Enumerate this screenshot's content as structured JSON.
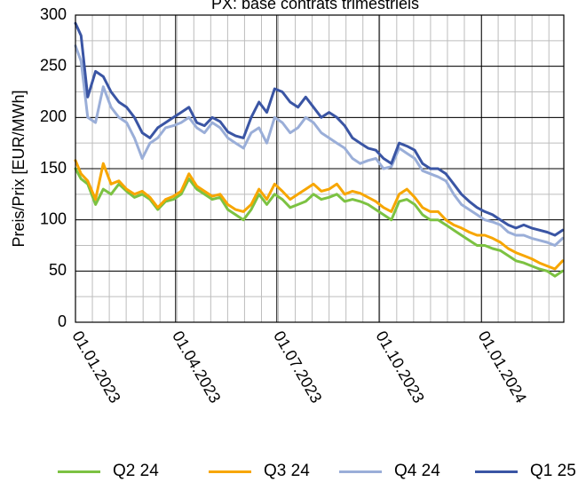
{
  "chart_data": {
    "type": "line",
    "title": "PX: base contrats trimestriels",
    "xlabel": "",
    "ylabel": "Preis/Prix [EUR/MWh]",
    "ylim": [
      0,
      300
    ],
    "yticks": [
      0,
      50,
      100,
      150,
      200,
      250,
      300
    ],
    "xrange": [
      "2023-01-01",
      "2024-03-15"
    ],
    "xticks": [
      {
        "date": "2023-01-01",
        "label": "01.01.2023"
      },
      {
        "date": "2023-04-01",
        "label": "01.04.2023"
      },
      {
        "date": "2023-07-01",
        "label": "01.07.2023"
      },
      {
        "date": "2023-10-01",
        "label": "01.10.2023"
      },
      {
        "date": "2024-01-01",
        "label": "01.01.2024"
      }
    ],
    "grid": true,
    "legend_position": "bottom",
    "series": [
      {
        "name": "Q2 24",
        "color": "#7cc242",
        "x": [
          "2023-01-01",
          "2023-01-06",
          "2023-01-12",
          "2023-01-19",
          "2023-01-26",
          "2023-02-02",
          "2023-02-09",
          "2023-02-16",
          "2023-02-23",
          "2023-03-02",
          "2023-03-09",
          "2023-03-16",
          "2023-03-23",
          "2023-03-30",
          "2023-04-06",
          "2023-04-13",
          "2023-04-20",
          "2023-04-27",
          "2023-05-04",
          "2023-05-11",
          "2023-05-18",
          "2023-05-25",
          "2023-06-01",
          "2023-06-08",
          "2023-06-15",
          "2023-06-22",
          "2023-06-29",
          "2023-07-06",
          "2023-07-13",
          "2023-07-20",
          "2023-07-27",
          "2023-08-03",
          "2023-08-10",
          "2023-08-17",
          "2023-08-24",
          "2023-08-31",
          "2023-09-07",
          "2023-09-14",
          "2023-09-21",
          "2023-09-28",
          "2023-10-05",
          "2023-10-12",
          "2023-10-19",
          "2023-10-26",
          "2023-11-02",
          "2023-11-09",
          "2023-11-16",
          "2023-11-23",
          "2023-11-30",
          "2023-12-07",
          "2023-12-14",
          "2023-12-21",
          "2023-12-28",
          "2024-01-04",
          "2024-01-11",
          "2024-01-18",
          "2024-01-25",
          "2024-02-01",
          "2024-02-08",
          "2024-02-15",
          "2024-02-22",
          "2024-02-29",
          "2024-03-07",
          "2024-03-14"
        ],
        "values": [
          150,
          140,
          135,
          115,
          130,
          125,
          135,
          128,
          122,
          125,
          120,
          110,
          118,
          120,
          125,
          140,
          130,
          125,
          120,
          122,
          110,
          105,
          100,
          110,
          125,
          115,
          125,
          120,
          112,
          115,
          118,
          125,
          120,
          122,
          125,
          118,
          120,
          118,
          115,
          110,
          105,
          100,
          118,
          120,
          115,
          105,
          100,
          100,
          95,
          90,
          85,
          80,
          75,
          75,
          72,
          70,
          65,
          60,
          58,
          55,
          52,
          50,
          45,
          50
        ]
      },
      {
        "name": "Q3 24",
        "color": "#f7a600",
        "x": [
          "2023-01-01",
          "2023-01-06",
          "2023-01-12",
          "2023-01-19",
          "2023-01-26",
          "2023-02-02",
          "2023-02-09",
          "2023-02-16",
          "2023-02-23",
          "2023-03-02",
          "2023-03-09",
          "2023-03-16",
          "2023-03-23",
          "2023-03-30",
          "2023-04-06",
          "2023-04-13",
          "2023-04-20",
          "2023-04-27",
          "2023-05-04",
          "2023-05-11",
          "2023-05-18",
          "2023-05-25",
          "2023-06-01",
          "2023-06-08",
          "2023-06-15",
          "2023-06-22",
          "2023-06-29",
          "2023-07-06",
          "2023-07-13",
          "2023-07-20",
          "2023-07-27",
          "2023-08-03",
          "2023-08-10",
          "2023-08-17",
          "2023-08-24",
          "2023-08-31",
          "2023-09-07",
          "2023-09-14",
          "2023-09-21",
          "2023-09-28",
          "2023-10-05",
          "2023-10-12",
          "2023-10-19",
          "2023-10-26",
          "2023-11-02",
          "2023-11-09",
          "2023-11-16",
          "2023-11-23",
          "2023-11-30",
          "2023-12-07",
          "2023-12-14",
          "2023-12-21",
          "2023-12-28",
          "2024-01-04",
          "2024-01-11",
          "2024-01-18",
          "2024-01-25",
          "2024-02-01",
          "2024-02-08",
          "2024-02-15",
          "2024-02-22",
          "2024-02-29",
          "2024-03-07",
          "2024-03-14"
        ],
        "values": [
          158,
          145,
          138,
          120,
          155,
          135,
          138,
          130,
          125,
          128,
          122,
          112,
          120,
          123,
          128,
          145,
          133,
          128,
          123,
          125,
          115,
          110,
          108,
          115,
          130,
          120,
          135,
          128,
          120,
          125,
          130,
          135,
          128,
          130,
          135,
          125,
          128,
          126,
          122,
          118,
          112,
          108,
          125,
          130,
          122,
          112,
          108,
          108,
          100,
          95,
          92,
          88,
          85,
          85,
          82,
          78,
          72,
          68,
          65,
          62,
          58,
          55,
          52,
          60
        ]
      },
      {
        "name": "Q4 24",
        "color": "#9aaed8",
        "x": [
          "2023-01-01",
          "2023-01-06",
          "2023-01-12",
          "2023-01-19",
          "2023-01-26",
          "2023-02-02",
          "2023-02-09",
          "2023-02-16",
          "2023-02-23",
          "2023-03-02",
          "2023-03-09",
          "2023-03-16",
          "2023-03-23",
          "2023-03-30",
          "2023-04-06",
          "2023-04-13",
          "2023-04-20",
          "2023-04-27",
          "2023-05-04",
          "2023-05-11",
          "2023-05-18",
          "2023-05-25",
          "2023-06-01",
          "2023-06-08",
          "2023-06-15",
          "2023-06-22",
          "2023-06-29",
          "2023-07-06",
          "2023-07-13",
          "2023-07-20",
          "2023-07-27",
          "2023-08-03",
          "2023-08-10",
          "2023-08-17",
          "2023-08-24",
          "2023-08-31",
          "2023-09-07",
          "2023-09-14",
          "2023-09-21",
          "2023-09-28",
          "2023-10-05",
          "2023-10-12",
          "2023-10-19",
          "2023-10-26",
          "2023-11-02",
          "2023-11-09",
          "2023-11-16",
          "2023-11-23",
          "2023-11-30",
          "2023-12-07",
          "2023-12-14",
          "2023-12-21",
          "2023-12-28",
          "2024-01-04",
          "2024-01-11",
          "2024-01-18",
          "2024-01-25",
          "2024-02-01",
          "2024-02-08",
          "2024-02-15",
          "2024-02-22",
          "2024-02-29",
          "2024-03-07",
          "2024-03-14"
        ],
        "values": [
          270,
          255,
          200,
          195,
          230,
          210,
          200,
          195,
          180,
          160,
          175,
          180,
          190,
          192,
          195,
          200,
          190,
          185,
          195,
          190,
          180,
          175,
          170,
          185,
          190,
          175,
          200,
          195,
          185,
          190,
          200,
          195,
          185,
          180,
          175,
          170,
          160,
          155,
          158,
          160,
          150,
          152,
          170,
          165,
          160,
          148,
          145,
          142,
          138,
          125,
          115,
          110,
          105,
          100,
          98,
          95,
          88,
          85,
          85,
          82,
          80,
          78,
          75,
          82
        ]
      },
      {
        "name": "Q1 25",
        "color": "#3a55a4",
        "x": [
          "2023-01-01",
          "2023-01-06",
          "2023-01-12",
          "2023-01-19",
          "2023-01-26",
          "2023-02-02",
          "2023-02-09",
          "2023-02-16",
          "2023-02-23",
          "2023-03-02",
          "2023-03-09",
          "2023-03-16",
          "2023-03-23",
          "2023-03-30",
          "2023-04-06",
          "2023-04-13",
          "2023-04-20",
          "2023-04-27",
          "2023-05-04",
          "2023-05-11",
          "2023-05-18",
          "2023-05-25",
          "2023-06-01",
          "2023-06-08",
          "2023-06-15",
          "2023-06-22",
          "2023-06-29",
          "2023-07-06",
          "2023-07-13",
          "2023-07-20",
          "2023-07-27",
          "2023-08-03",
          "2023-08-10",
          "2023-08-17",
          "2023-08-24",
          "2023-08-31",
          "2023-09-07",
          "2023-09-14",
          "2023-09-21",
          "2023-09-28",
          "2023-10-05",
          "2023-10-12",
          "2023-10-19",
          "2023-10-26",
          "2023-11-02",
          "2023-11-09",
          "2023-11-16",
          "2023-11-23",
          "2023-11-30",
          "2023-12-07",
          "2023-12-14",
          "2023-12-21",
          "2023-12-28",
          "2024-01-04",
          "2024-01-11",
          "2024-01-18",
          "2024-01-25",
          "2024-02-01",
          "2024-02-08",
          "2024-02-15",
          "2024-02-22",
          "2024-02-29",
          "2024-03-07",
          "2024-03-14"
        ],
        "values": [
          292,
          280,
          220,
          245,
          240,
          225,
          215,
          210,
          200,
          185,
          180,
          190,
          195,
          200,
          205,
          210,
          195,
          192,
          200,
          196,
          186,
          182,
          180,
          200,
          215,
          205,
          228,
          225,
          215,
          210,
          220,
          210,
          200,
          205,
          200,
          192,
          180,
          175,
          170,
          168,
          160,
          155,
          175,
          172,
          168,
          155,
          150,
          150,
          145,
          135,
          125,
          118,
          112,
          108,
          105,
          100,
          95,
          92,
          95,
          92,
          90,
          88,
          85,
          90
        ]
      }
    ]
  }
}
